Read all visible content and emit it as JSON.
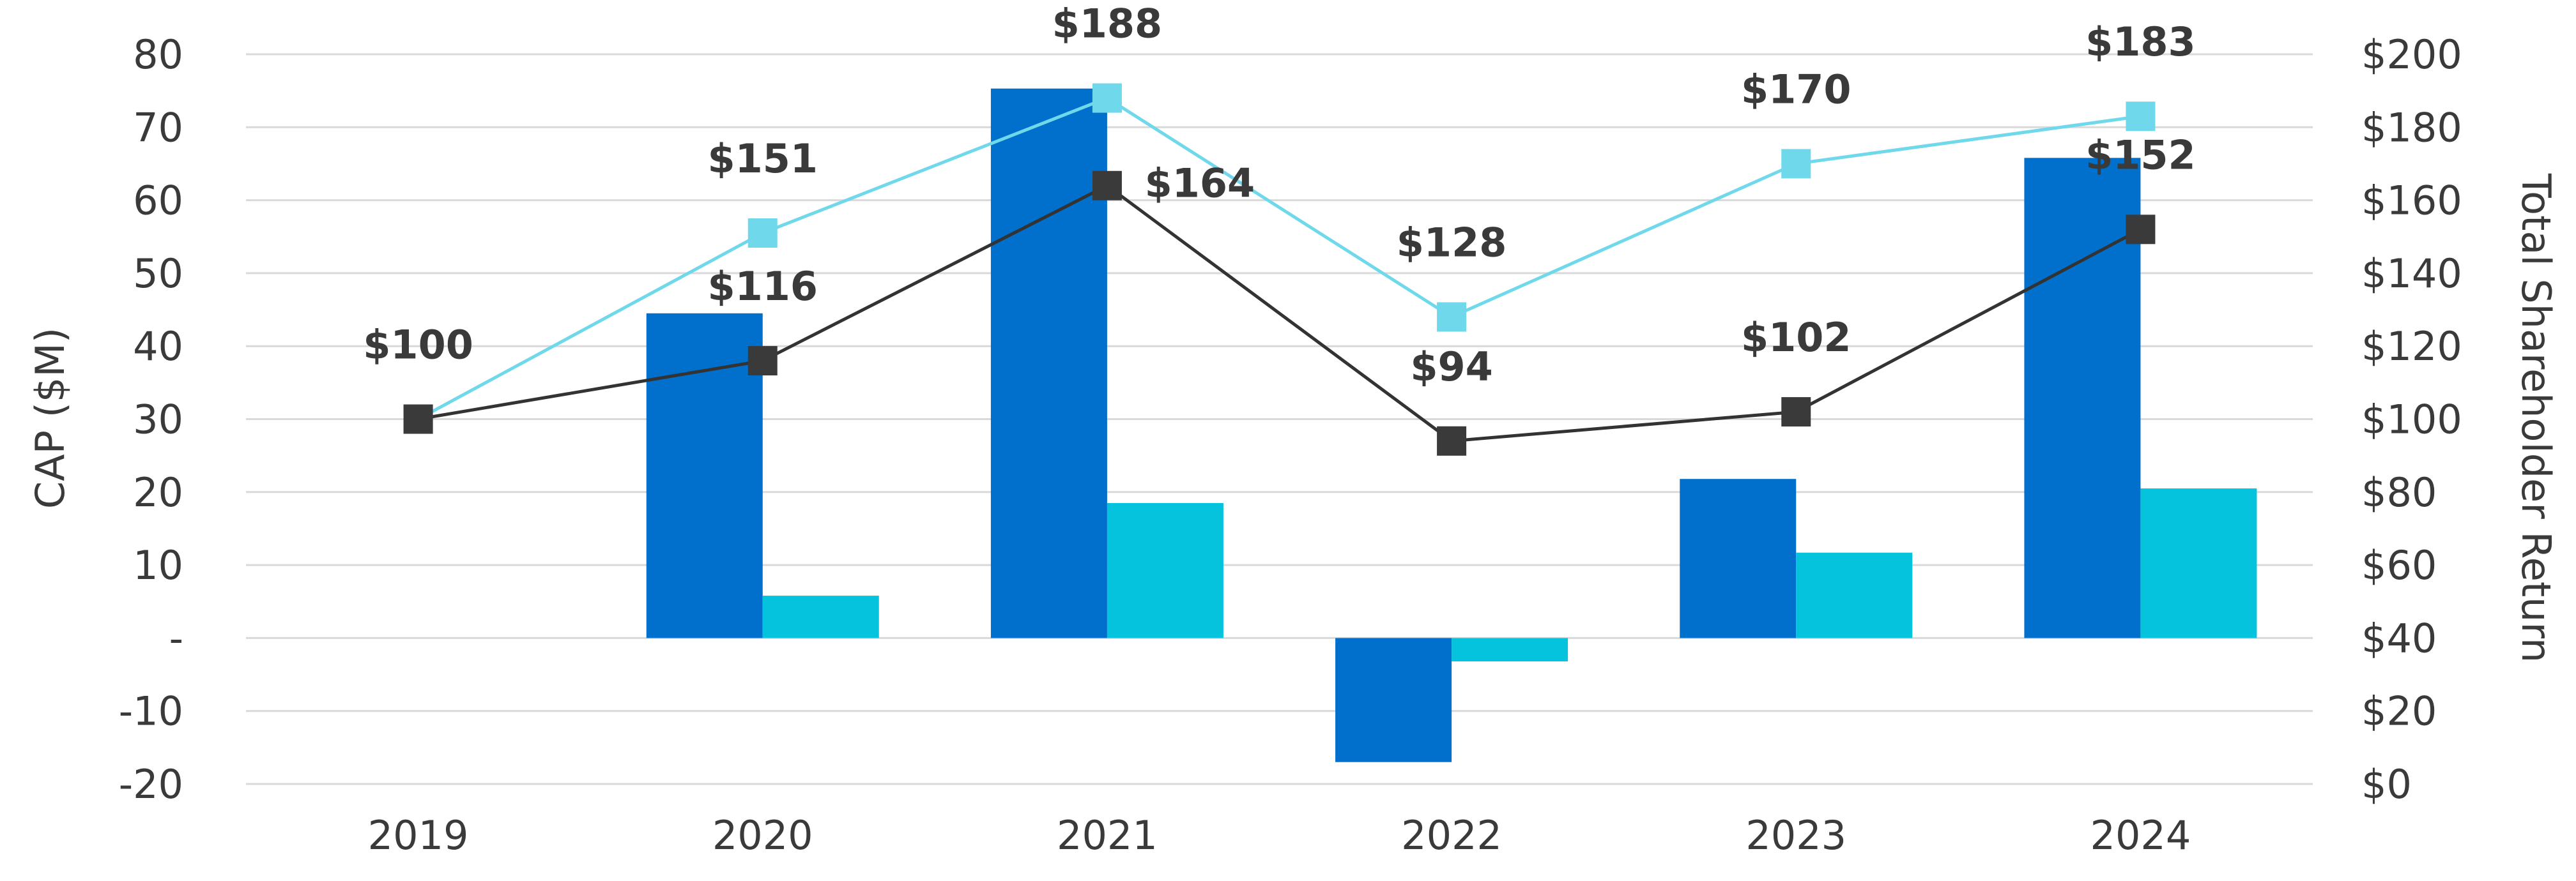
{
  "chart_data": {
    "type": "bar",
    "categories": [
      "2019",
      "2020",
      "2021",
      "2022",
      "2023",
      "2024"
    ],
    "ylabel": "CAP ($M)",
    "ylabel_right": "Total Shareholder Return",
    "ylim": [
      -20,
      80
    ],
    "ylim_right": [
      0,
      200
    ],
    "yticks": [
      "80",
      "70",
      "60",
      "50",
      "40",
      "30",
      "20",
      "10",
      "-",
      "-10",
      "-20"
    ],
    "yticks_right": [
      "$200",
      "$180",
      "$160",
      "$140",
      "$120",
      "$100",
      "$80",
      "$60",
      "$40",
      "$20",
      "$0"
    ],
    "grid": true,
    "bars": [
      {
        "color": "#0070cc",
        "values": [
          null,
          44.5,
          75.3,
          -17.0,
          21.8,
          65.8
        ]
      },
      {
        "color": "#05c3dd",
        "values": [
          null,
          5.8,
          18.5,
          -3.2,
          11.7,
          20.5
        ]
      }
    ],
    "lines": [
      {
        "color": "#6fd8ea",
        "marker_color": "#6fd8ea",
        "values": [
          100,
          151,
          188,
          128,
          170,
          183
        ],
        "labels": [
          "$100",
          "$151",
          "$188",
          "$128",
          "$170",
          "$183"
        ]
      },
      {
        "color": "#333333",
        "marker_color": "#3a3a3a",
        "values": [
          100,
          116,
          164,
          94,
          102,
          152
        ],
        "labels": [
          "$100",
          "$116",
          "$164",
          "$94",
          "$102",
          "$152"
        ]
      }
    ]
  }
}
